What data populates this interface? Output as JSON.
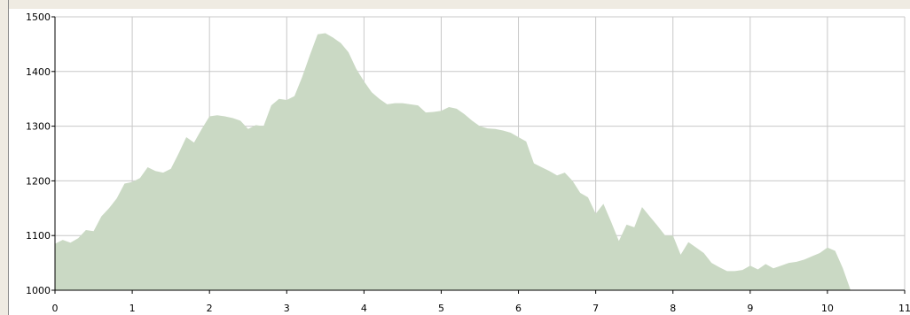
{
  "chart_data": {
    "type": "area",
    "title": "",
    "xlabel": "",
    "ylabel": "",
    "xlim": [
      0,
      11
    ],
    "ylim": [
      1000,
      1500
    ],
    "xticks": [
      "0",
      "1",
      "2",
      "3",
      "4",
      "5",
      "6",
      "7",
      "8",
      "9",
      "10",
      "11"
    ],
    "yticks": [
      "1000",
      "1100",
      "1200",
      "1300",
      "1400",
      "1500"
    ],
    "grid": true,
    "fill_color": "#cad9c4",
    "grid_color": "#c8c8c8",
    "axis_color": "#000000",
    "x": [
      0,
      0.1,
      0.2,
      0.3,
      0.4,
      0.5,
      0.6,
      0.7,
      0.8,
      0.9,
      1.0,
      1.1,
      1.2,
      1.3,
      1.4,
      1.5,
      1.6,
      1.7,
      1.8,
      1.9,
      2.0,
      2.1,
      2.2,
      2.3,
      2.4,
      2.5,
      2.6,
      2.7,
      2.8,
      2.9,
      3.0,
      3.1,
      3.2,
      3.3,
      3.4,
      3.5,
      3.6,
      3.7,
      3.8,
      3.9,
      4.0,
      4.1,
      4.2,
      4.3,
      4.4,
      4.5,
      4.6,
      4.7,
      4.8,
      4.9,
      5.0,
      5.1,
      5.2,
      5.3,
      5.4,
      5.5,
      5.6,
      5.7,
      5.8,
      5.9,
      6.0,
      6.1,
      6.2,
      6.3,
      6.4,
      6.5,
      6.6,
      6.7,
      6.8,
      6.9,
      7.0,
      7.1,
      7.2,
      7.3,
      7.4,
      7.5,
      7.6,
      7.7,
      7.8,
      7.9,
      8.0,
      8.1,
      8.2,
      8.3,
      8.4,
      8.5,
      8.6,
      8.7,
      8.8,
      8.9,
      9.0,
      9.1,
      9.2,
      9.3,
      9.4,
      9.5,
      9.6,
      9.7,
      9.8,
      9.9,
      10.0,
      10.1,
      10.2,
      10.3
    ],
    "y": [
      1085,
      1092,
      1087,
      1095,
      1110,
      1108,
      1135,
      1150,
      1168,
      1195,
      1198,
      1205,
      1225,
      1218,
      1215,
      1222,
      1250,
      1280,
      1270,
      1295,
      1318,
      1320,
      1318,
      1315,
      1310,
      1295,
      1302,
      1300,
      1338,
      1350,
      1348,
      1355,
      1390,
      1430,
      1468,
      1470,
      1462,
      1452,
      1435,
      1405,
      1382,
      1362,
      1350,
      1340,
      1342,
      1342,
      1340,
      1338,
      1325,
      1326,
      1328,
      1335,
      1332,
      1322,
      1310,
      1300,
      1296,
      1295,
      1292,
      1288,
      1280,
      1272,
      1232,
      1225,
      1218,
      1210,
      1215,
      1200,
      1178,
      1170,
      1140,
      1158,
      1125,
      1090,
      1120,
      1115,
      1152,
      1135,
      1118,
      1100,
      1100,
      1065,
      1088,
      1078,
      1068,
      1050,
      1042,
      1035,
      1035,
      1037,
      1045,
      1038,
      1048,
      1040,
      1045,
      1050,
      1052,
      1056,
      1062,
      1068,
      1078,
      1072,
      1040,
      1000
    ]
  }
}
